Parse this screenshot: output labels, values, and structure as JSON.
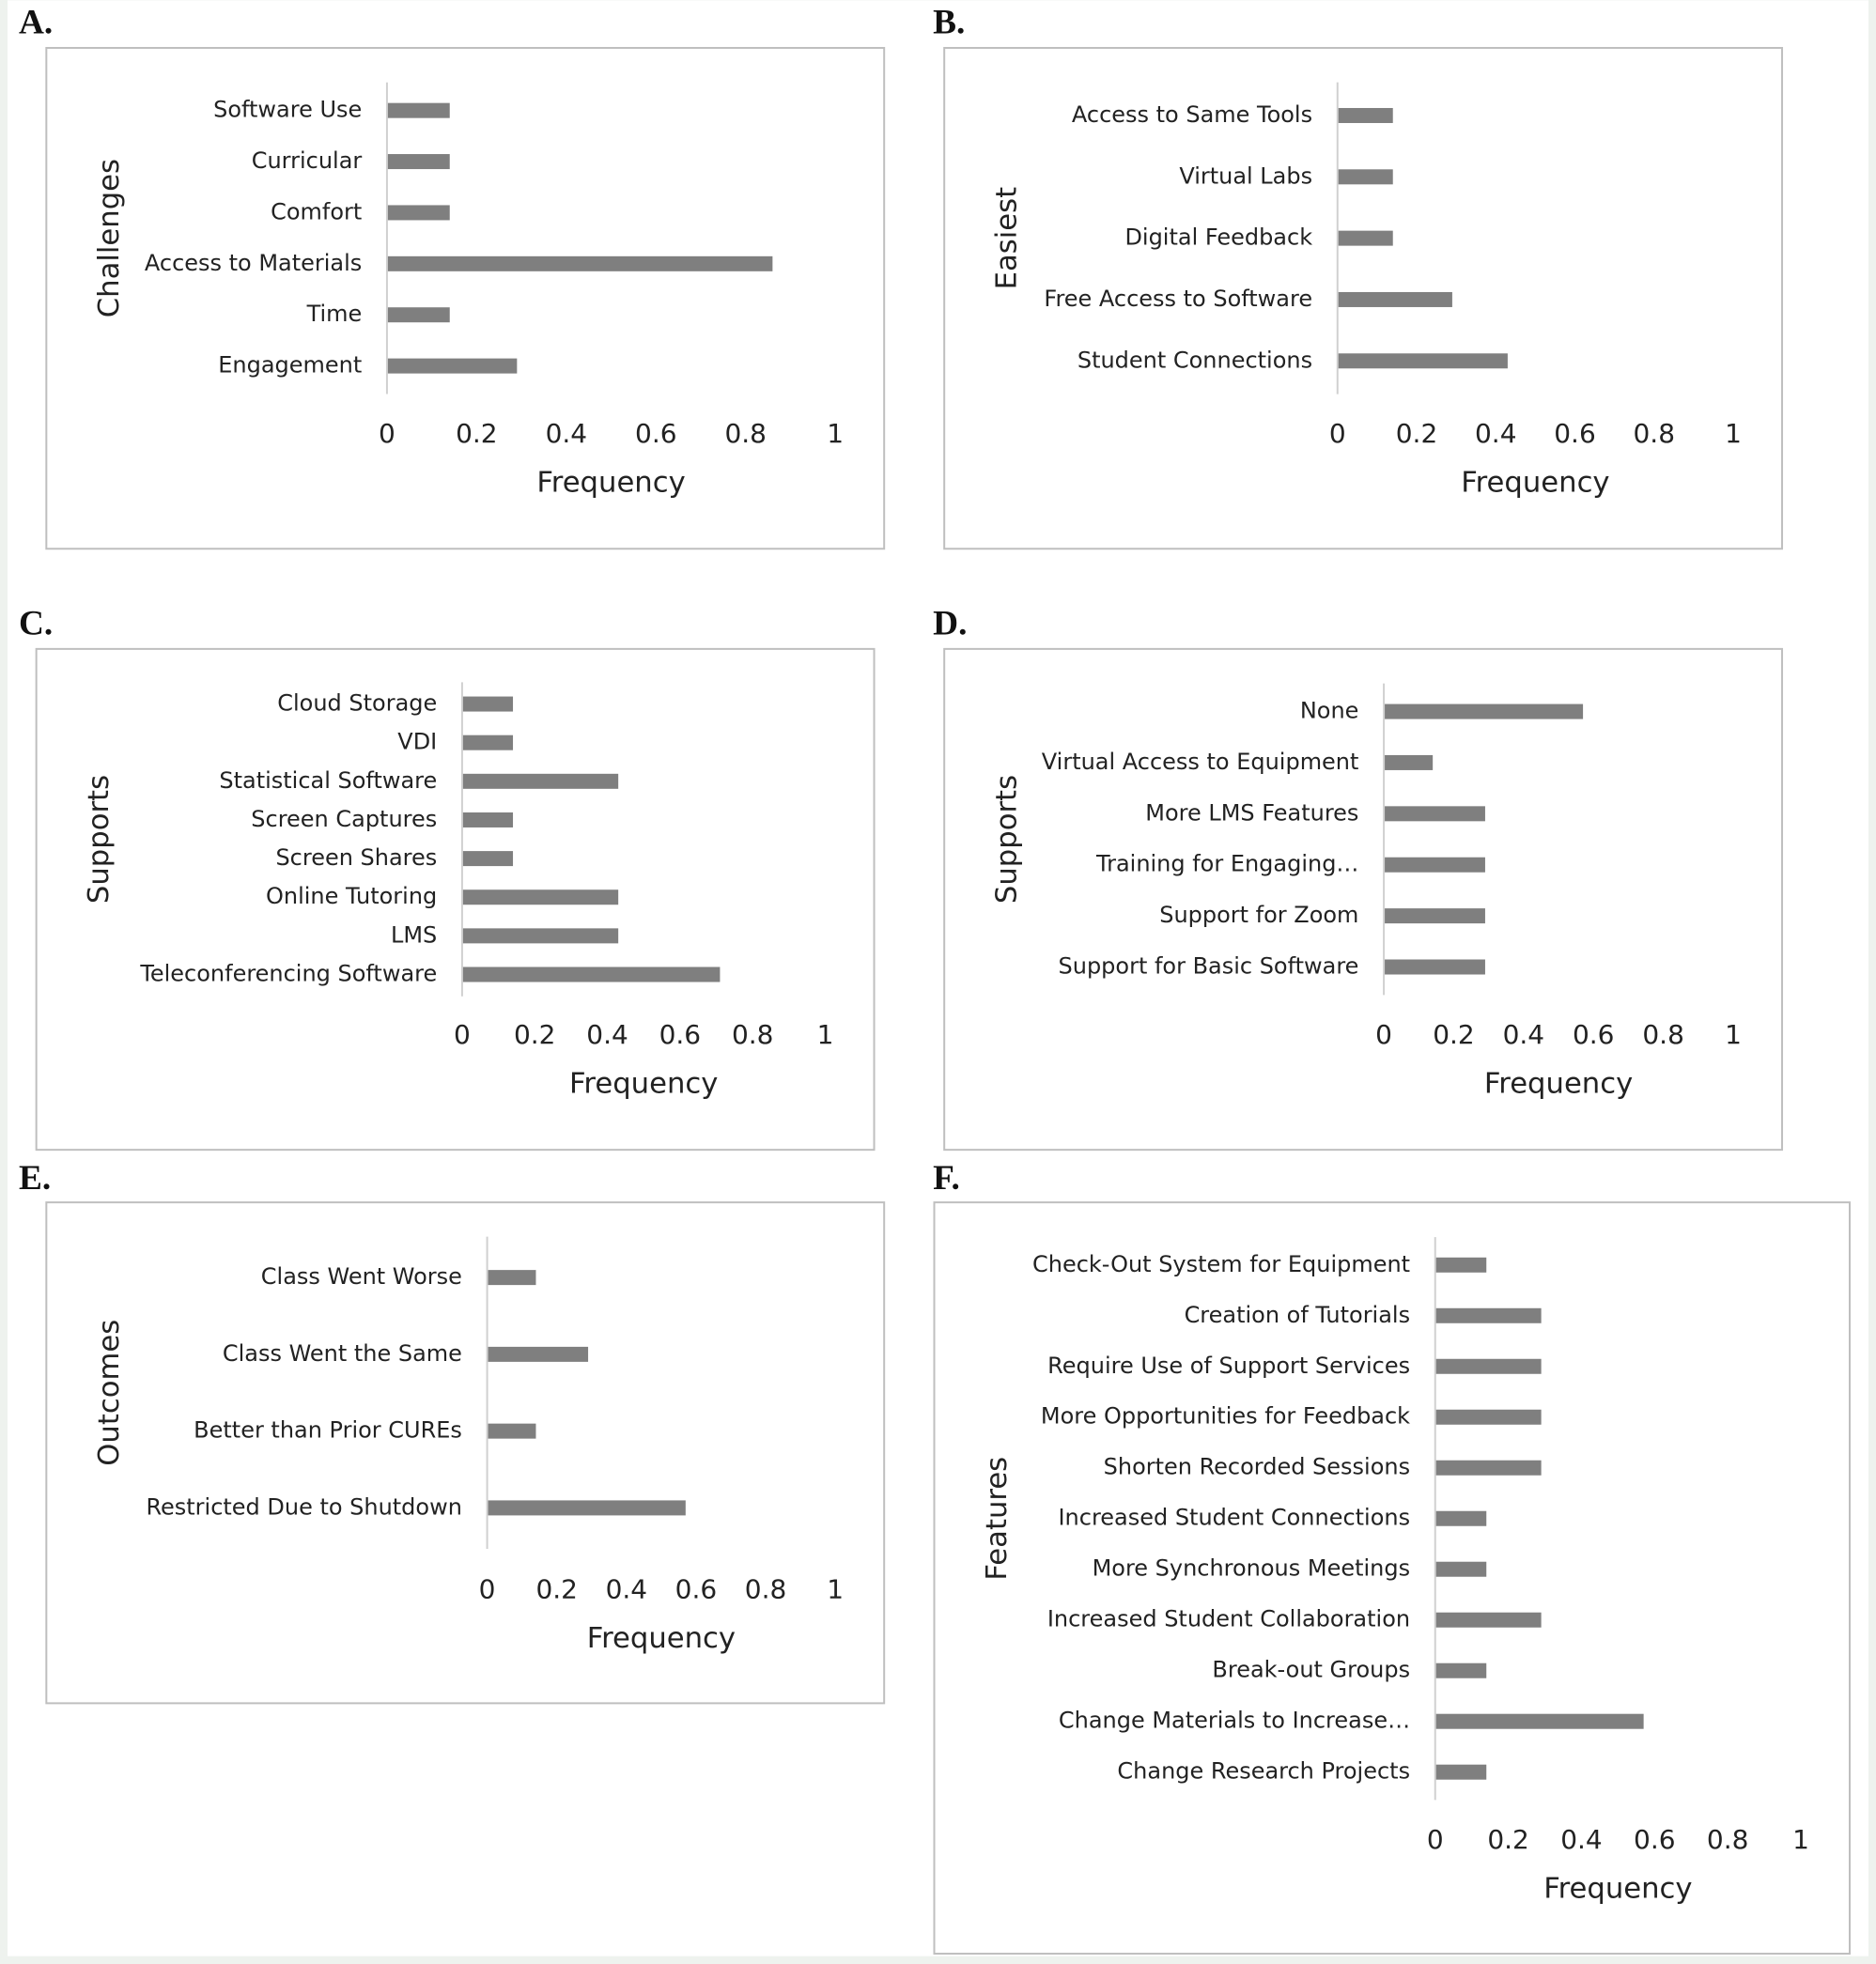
{
  "chart_data": [
    {
      "type": "bar",
      "orientation": "horizontal",
      "panel": "A.",
      "ylabel": "Challenges",
      "xlabel": "Frequency",
      "color": "#7f7f7f",
      "categories": [
        "Software Use",
        "Curricular",
        "Comfort",
        "Access to Materials",
        "Time",
        "Engagement"
      ],
      "values": [
        0.14,
        0.14,
        0.14,
        0.86,
        0.14,
        0.29
      ],
      "xlim": [
        0,
        1
      ],
      "xticks": [
        0,
        0.2,
        0.4,
        0.6,
        0.8,
        1
      ]
    },
    {
      "type": "bar",
      "orientation": "horizontal",
      "panel": "B.",
      "ylabel": "Easiest",
      "xlabel": "Frequency",
      "color": "#7f7f7f",
      "categories": [
        "Access to Same Tools",
        "Virtual Labs",
        "Digital Feedback",
        "Free Access to Software",
        "Student Connections"
      ],
      "values": [
        0.14,
        0.14,
        0.14,
        0.29,
        0.43
      ],
      "xlim": [
        0,
        1
      ],
      "xticks": [
        0,
        0.2,
        0.4,
        0.6,
        0.8,
        1
      ]
    },
    {
      "type": "bar",
      "orientation": "horizontal",
      "panel": "C.",
      "ylabel": "Supports",
      "xlabel": "Frequency",
      "color": "#7f7f7f",
      "categories": [
        "Cloud Storage",
        "VDI",
        "Statistical Software",
        "Screen Captures",
        "Screen Shares",
        "Online Tutoring",
        "LMS",
        "Teleconferencing Software"
      ],
      "values": [
        0.14,
        0.14,
        0.43,
        0.14,
        0.14,
        0.43,
        0.43,
        0.71
      ],
      "xlim": [
        0,
        1
      ],
      "xticks": [
        0,
        0.2,
        0.4,
        0.6,
        0.8,
        1
      ]
    },
    {
      "type": "bar",
      "orientation": "horizontal",
      "panel": "D.",
      "ylabel": "Supports",
      "xlabel": "Frequency",
      "color": "#7f7f7f",
      "categories": [
        "None",
        "Virtual Access to Equipment",
        "More LMS Features",
        "Training for Engaging…",
        "Support for Zoom",
        "Support for Basic Software"
      ],
      "values": [
        0.57,
        0.14,
        0.29,
        0.29,
        0.29,
        0.29
      ],
      "xlim": [
        0,
        1
      ],
      "xticks": [
        0,
        0.2,
        0.4,
        0.6,
        0.8,
        1
      ]
    },
    {
      "type": "bar",
      "orientation": "horizontal",
      "panel": "E.",
      "ylabel": "Outcomes",
      "xlabel": "Frequency",
      "color": "#7f7f7f",
      "categories": [
        "Class Went Worse",
        "Class Went the Same",
        "Better than Prior CUREs",
        "Restricted Due to Shutdown"
      ],
      "values": [
        0.14,
        0.29,
        0.14,
        0.57
      ],
      "xlim": [
        0,
        1
      ],
      "xticks": [
        0,
        0.2,
        0.4,
        0.6,
        0.8,
        1
      ]
    },
    {
      "type": "bar",
      "orientation": "horizontal",
      "panel": "F.",
      "ylabel": "Features",
      "xlabel": "Frequency",
      "color": "#7f7f7f",
      "categories": [
        "Check-Out System for Equipment",
        "Creation of Tutorials",
        "Require Use of Support Services",
        "More Opportunities for Feedback",
        "Shorten Recorded Sessions",
        "Increased Student Connections",
        "More Synchronous Meetings",
        "Increased Student Collaboration",
        "Break-out Groups",
        "Change Materials to Increase…",
        "Change Research Projects"
      ],
      "values": [
        0.14,
        0.29,
        0.29,
        0.29,
        0.29,
        0.14,
        0.14,
        0.29,
        0.14,
        0.57,
        0.14
      ],
      "xlim": [
        0,
        1
      ],
      "xticks": [
        0,
        0.2,
        0.4,
        0.6,
        0.8,
        1
      ]
    }
  ]
}
